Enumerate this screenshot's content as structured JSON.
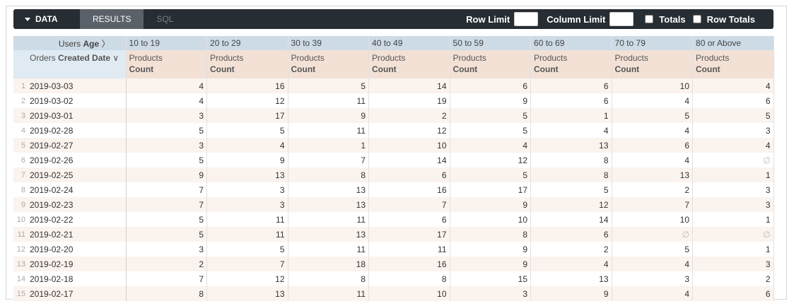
{
  "toolbar": {
    "tabs": [
      "DATA",
      "RESULTS",
      "SQL"
    ],
    "row_limit": "Row Limit",
    "column_limit": "Column Limit",
    "totals": "Totals",
    "row_totals": "Row Totals"
  },
  "table": {
    "pivot_label": {
      "view": "Users",
      "field": "Age"
    },
    "dimension": {
      "view": "Orders",
      "field": "Created Date"
    },
    "measure": {
      "view": "Products",
      "field": "Count"
    },
    "columns": [
      "10 to 19",
      "20 to 29",
      "30 to 39",
      "40 to 49",
      "50 to 59",
      "60 to 69",
      "70 to 79",
      "80 or Above"
    ],
    "rows": [
      {
        "n": 1,
        "date": "2019-03-03",
        "values": [
          4,
          16,
          5,
          14,
          6,
          6,
          10,
          4
        ]
      },
      {
        "n": 2,
        "date": "2019-03-02",
        "values": [
          4,
          12,
          11,
          19,
          9,
          6,
          4,
          6
        ]
      },
      {
        "n": 3,
        "date": "2019-03-01",
        "values": [
          3,
          17,
          9,
          2,
          5,
          1,
          5,
          5
        ]
      },
      {
        "n": 4,
        "date": "2019-02-28",
        "values": [
          5,
          5,
          11,
          12,
          5,
          4,
          4,
          3
        ]
      },
      {
        "n": 5,
        "date": "2019-02-27",
        "values": [
          3,
          4,
          1,
          10,
          4,
          13,
          6,
          4
        ]
      },
      {
        "n": 6,
        "date": "2019-02-26",
        "values": [
          5,
          9,
          7,
          14,
          12,
          8,
          4,
          "∅"
        ]
      },
      {
        "n": 7,
        "date": "2019-02-25",
        "values": [
          9,
          13,
          8,
          6,
          5,
          8,
          13,
          1
        ]
      },
      {
        "n": 8,
        "date": "2019-02-24",
        "values": [
          7,
          3,
          13,
          16,
          17,
          5,
          2,
          3
        ]
      },
      {
        "n": 9,
        "date": "2019-02-23",
        "values": [
          7,
          3,
          13,
          7,
          9,
          12,
          7,
          3
        ]
      },
      {
        "n": 10,
        "date": "2019-02-22",
        "values": [
          5,
          11,
          11,
          6,
          10,
          14,
          10,
          1
        ]
      },
      {
        "n": 11,
        "date": "2019-02-21",
        "values": [
          5,
          11,
          13,
          17,
          8,
          6,
          "∅",
          "∅"
        ]
      },
      {
        "n": 12,
        "date": "2019-02-20",
        "values": [
          3,
          5,
          11,
          11,
          9,
          2,
          5,
          1
        ]
      },
      {
        "n": 13,
        "date": "2019-02-19",
        "values": [
          2,
          7,
          18,
          16,
          9,
          4,
          4,
          3
        ]
      },
      {
        "n": 14,
        "date": "2019-02-18",
        "values": [
          7,
          12,
          8,
          8,
          15,
          13,
          3,
          2
        ]
      },
      {
        "n": 15,
        "date": "2019-02-17",
        "values": [
          8,
          13,
          11,
          10,
          3,
          9,
          4,
          6
        ]
      }
    ]
  }
}
